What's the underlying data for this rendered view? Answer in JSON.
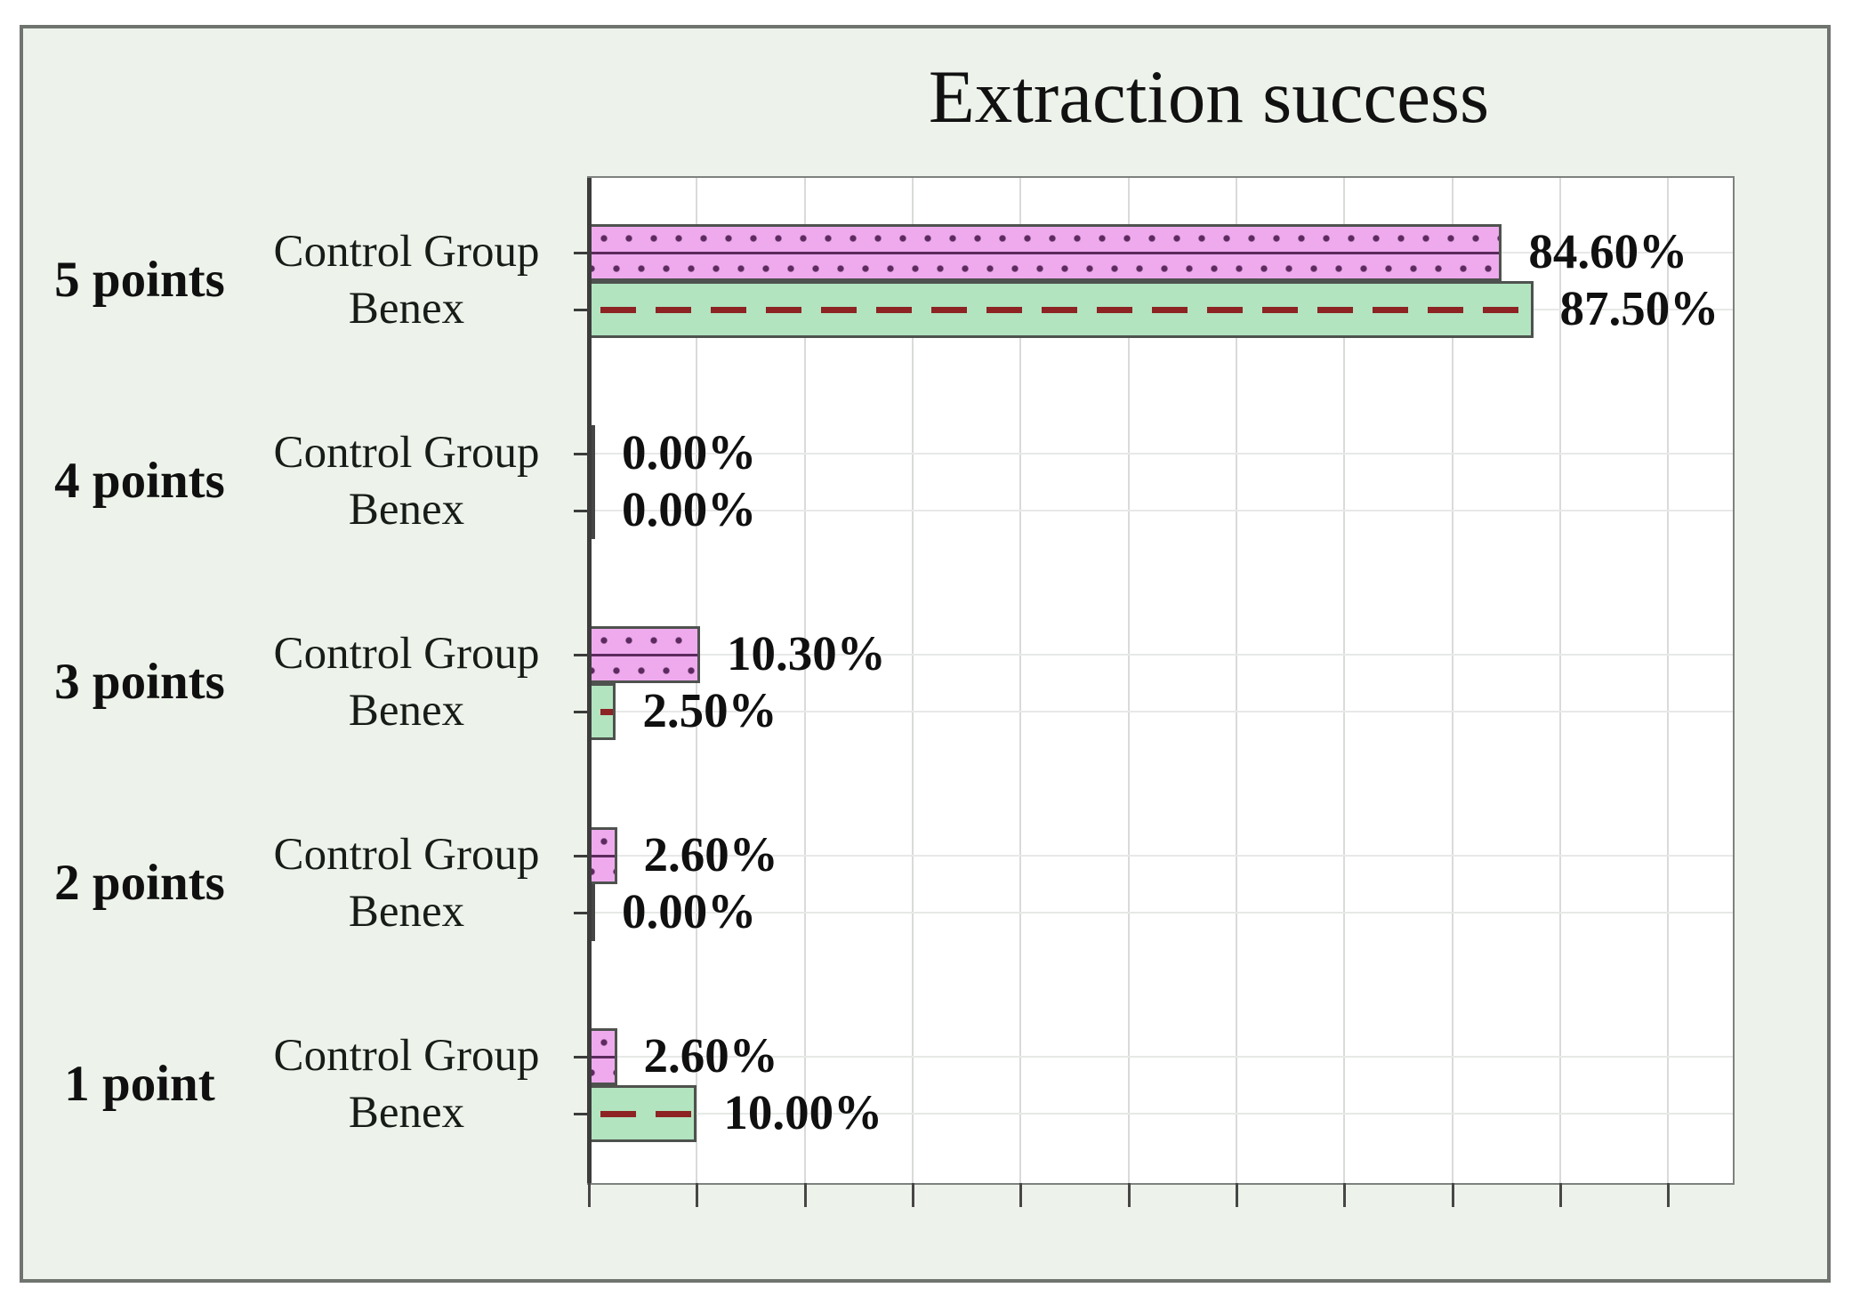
{
  "chart_data": {
    "type": "bar",
    "orientation": "horizontal",
    "title": "Extraction success",
    "categories": [
      "5 points",
      "4 points",
      "3 points",
      "2 points",
      "1 point"
    ],
    "series": [
      {
        "name": "Control Group",
        "values": [
          84.6,
          0.0,
          10.3,
          2.6,
          2.6
        ],
        "labels": [
          "84.60%",
          "0.00%",
          "10.30%",
          "2.60%",
          "2.60%"
        ],
        "fill_color": "#efaaee",
        "pattern": "dotted-rows-with-center-line",
        "pattern_color": "#5c2a5e"
      },
      {
        "name": "Benex",
        "values": [
          87.5,
          0.0,
          2.5,
          0.0,
          10.0
        ],
        "labels": [
          "87.50%",
          "0.00%",
          "2.50%",
          "0.00%",
          "10.00%"
        ],
        "fill_color": "#b2e4c0",
        "pattern": "dashed-center-line",
        "pattern_color": "#8d2323"
      }
    ],
    "x_axis": {
      "min_percent": 0,
      "max_visible_percent": 106,
      "gridline_interval_percent": 10,
      "tick_interval_percent": 10,
      "tick_labels_shown": false
    },
    "legend": "none",
    "grid": "vertical-major-and-faint-row-lines"
  },
  "colors": {
    "background_mint": "#edf3ea",
    "frame_border": "#6f746f",
    "plot_background": "#ffffff",
    "plot_border": "#7e827e",
    "axis_line": "#3c3c3c",
    "gridline_vertical": "#d8dbd8",
    "gridline_row": "#e6e9e6",
    "bar_border": "#4e524e",
    "text": "#141414"
  }
}
